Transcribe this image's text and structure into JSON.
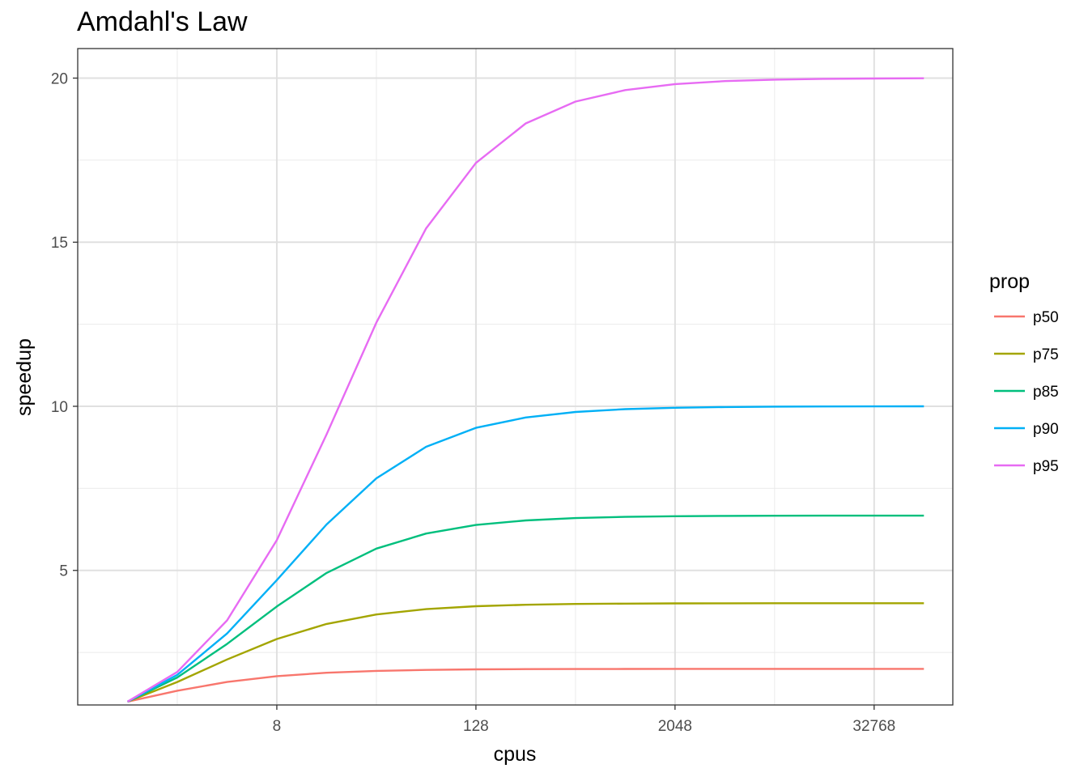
{
  "chart_data": {
    "type": "line",
    "title": "Amdahl's Law",
    "xlabel": "cpus",
    "ylabel": "speedup",
    "x_scale": "log2",
    "x": [
      1,
      2,
      4,
      8,
      16,
      32,
      64,
      128,
      256,
      512,
      1024,
      2048,
      4096,
      8192,
      16384,
      32768,
      65536
    ],
    "xlim": [
      0.5,
      98000
    ],
    "ylim": [
      0.9,
      20.9
    ],
    "x_ticks": [
      8,
      128,
      2048,
      32768
    ],
    "x_tick_labels": [
      "8",
      "128",
      "2048",
      "32768"
    ],
    "y_ticks": [
      5,
      10,
      15,
      20
    ],
    "y_tick_labels": [
      "5",
      "10",
      "15",
      "20"
    ],
    "grid": true,
    "legend_title": "prop",
    "legend_position": "right",
    "series": [
      {
        "name": "p50",
        "color": "#F8766D",
        "values": [
          1,
          1.333,
          1.6,
          1.778,
          1.882,
          1.939,
          1.969,
          1.984,
          1.992,
          1.996,
          1.998,
          1.999,
          2.0,
          2.0,
          2.0,
          2.0,
          2.0
        ]
      },
      {
        "name": "p75",
        "color": "#A3A500",
        "values": [
          1,
          1.6,
          2.286,
          2.909,
          3.368,
          3.657,
          3.82,
          3.908,
          3.953,
          3.977,
          3.988,
          3.994,
          3.997,
          3.999,
          3.999,
          4.0,
          4.0
        ]
      },
      {
        "name": "p85",
        "color": "#00BF7D",
        "values": [
          1,
          1.739,
          2.759,
          3.902,
          4.923,
          5.664,
          6.124,
          6.384,
          6.523,
          6.595,
          6.632,
          6.65,
          6.66,
          6.665,
          6.667,
          6.668,
          6.668
        ]
      },
      {
        "name": "p90",
        "color": "#00B0F6",
        "values": [
          1,
          1.818,
          3.077,
          4.706,
          6.4,
          7.805,
          8.767,
          9.343,
          9.66,
          9.827,
          9.913,
          9.956,
          9.978,
          9.989,
          9.995,
          9.997,
          9.999
        ]
      },
      {
        "name": "p95",
        "color": "#E76BF3",
        "values": [
          1,
          1.905,
          3.478,
          5.926,
          9.143,
          12.549,
          15.422,
          17.415,
          18.618,
          19.284,
          19.636,
          19.817,
          19.908,
          19.954,
          19.977,
          19.988,
          19.994
        ]
      }
    ]
  }
}
